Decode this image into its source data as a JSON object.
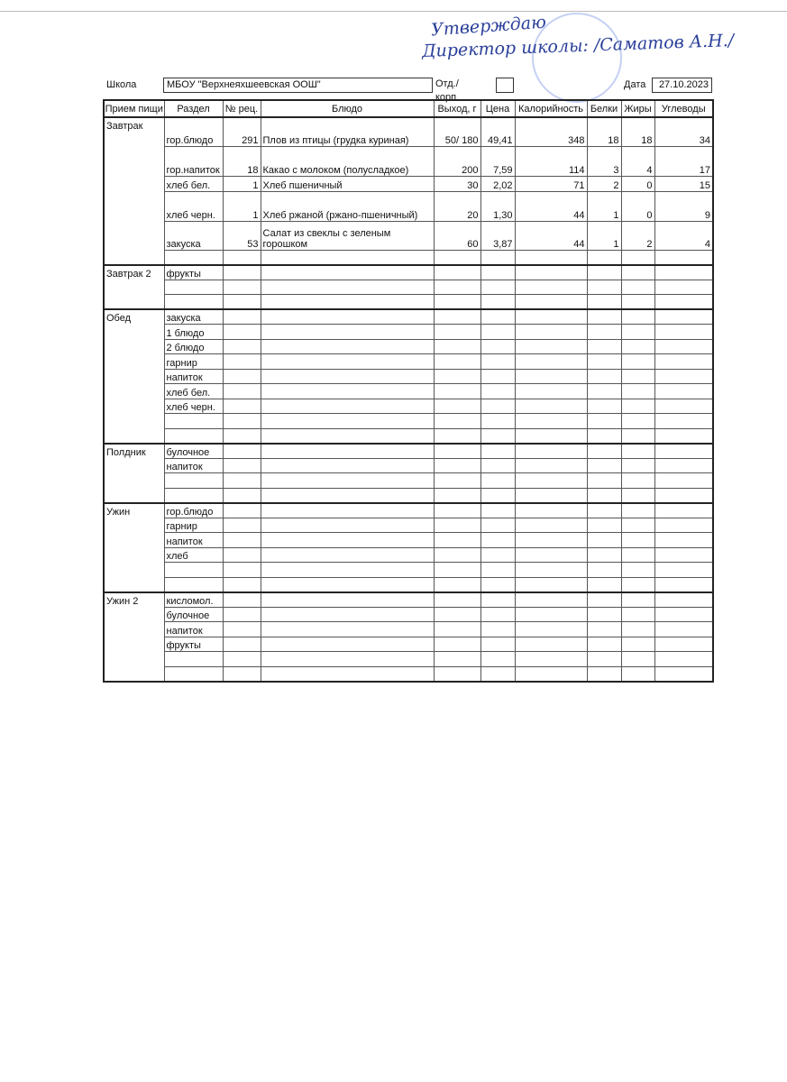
{
  "approval": {
    "line1": "Утверждаю",
    "line2": "Директор школы: /Саматов А.Н./"
  },
  "header": {
    "school_label": "Школа",
    "school": "МБОУ \"Верхнеяхшеевская ООШ\"",
    "branch_label": "Отд./корп",
    "date_label": "Дата",
    "date": "27.10.2023"
  },
  "table": {
    "columns": [
      "Прием пищи",
      "Раздел",
      "№ рец.",
      "Блюдо",
      "Выход, г",
      "Цена",
      "Калорийность",
      "Белки",
      "Жиры",
      "Углеводы"
    ],
    "meals": [
      {
        "name": "Завтрак",
        "rows": [
          {
            "section": "гор.блюдо",
            "recipe": 291,
            "dish": "Плов из птицы (грудка куриная)",
            "yield": "50/ 180",
            "price": "49,41",
            "calories": 348,
            "protein": 18,
            "fat": 18,
            "carbs": 34
          },
          {
            "section": "гор.напиток",
            "recipe": 18,
            "dish": "Какао  с молоком (полусладкое)",
            "yield": 200,
            "price": "7,59",
            "calories": 114,
            "protein": 3,
            "fat": 4,
            "carbs": 17
          },
          {
            "section": "хлеб бел.",
            "recipe": 1,
            "dish": "Хлеб пшеничный",
            "yield": 30,
            "price": "2,02",
            "calories": 71,
            "protein": 2,
            "fat": 0,
            "carbs": 15
          },
          {
            "section": "хлеб черн.",
            "recipe": 1,
            "dish": "Хлеб ржаной (ржано-пшеничный)",
            "yield": 20,
            "price": "1,30",
            "calories": 44,
            "protein": 1,
            "fat": 0,
            "carbs": 9
          },
          {
            "section": "закуска",
            "recipe": 53,
            "dish": "Салат  из свеклы с зеленым горошком",
            "yield": 60,
            "price": "3,87",
            "calories": 44,
            "protein": 1,
            "fat": 2,
            "carbs": 4
          }
        ]
      },
      {
        "name": "Завтрак 2",
        "rows": [
          {
            "section": "фрукты"
          }
        ]
      },
      {
        "name": "Обед",
        "rows": [
          {
            "section": "закуска"
          },
          {
            "section": "1 блюдо"
          },
          {
            "section": "2 блюдо"
          },
          {
            "section": "гарнир"
          },
          {
            "section": "напиток"
          },
          {
            "section": "хлеб бел."
          },
          {
            "section": "хлеб черн."
          }
        ]
      },
      {
        "name": "Полдник",
        "rows": [
          {
            "section": "булочное"
          },
          {
            "section": "напиток"
          }
        ]
      },
      {
        "name": "Ужин",
        "rows": [
          {
            "section": "гор.блюдо"
          },
          {
            "section": "гарнир"
          },
          {
            "section": "напиток"
          },
          {
            "section": "хлеб"
          }
        ]
      },
      {
        "name": "Ужин 2",
        "rows": [
          {
            "section": "кисломол."
          },
          {
            "section": "булочное"
          },
          {
            "section": "напиток"
          },
          {
            "section": "фрукты"
          }
        ]
      }
    ]
  }
}
